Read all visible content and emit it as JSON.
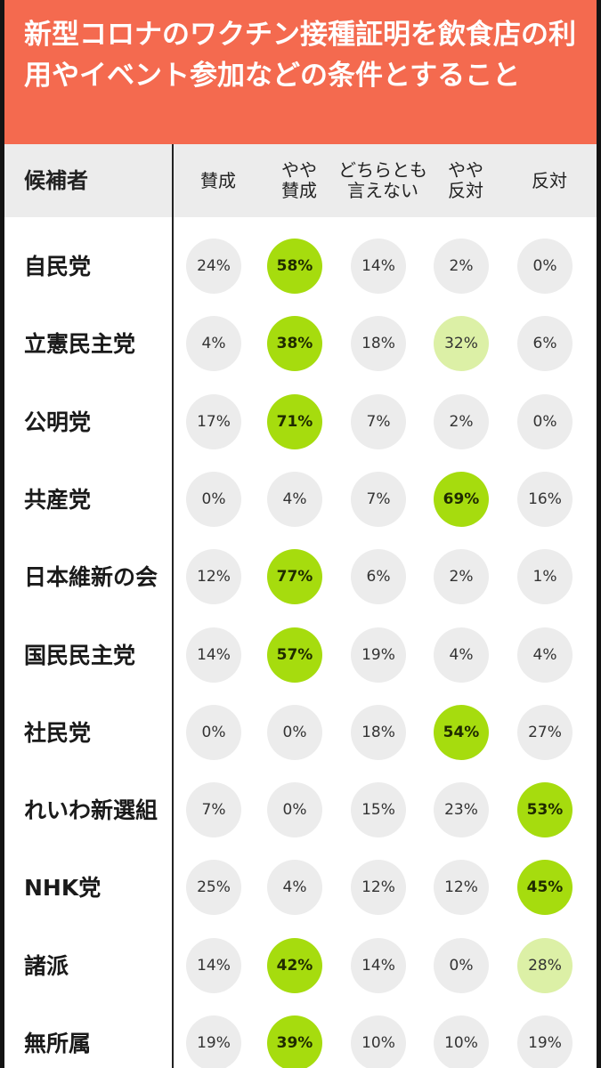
{
  "title": "新型コロナのワクチン接種証明を飲食店の利用やイベント参加などの条件とすること",
  "colors": {
    "title_bg": "#f46a4f",
    "header_bg": "#ececec",
    "cell_default": "#ececec",
    "cell_highlight": "#a6dc0e",
    "cell_second": "#dcf0a6"
  },
  "header": {
    "first_col": "候補者",
    "columns": [
      "賛成",
      "やや\n賛成",
      "どちらとも\n言えない",
      "やや\n反対",
      "反対"
    ]
  },
  "rows": [
    {
      "party": "自民党",
      "values": [
        "24%",
        "58%",
        "14%",
        "2%",
        "0%"
      ],
      "levels": [
        "",
        "hi",
        "",
        "",
        ""
      ]
    },
    {
      "party": "立憲民主党",
      "values": [
        "4%",
        "38%",
        "18%",
        "32%",
        "6%"
      ],
      "levels": [
        "",
        "hi",
        "",
        "mid",
        ""
      ]
    },
    {
      "party": "公明党",
      "values": [
        "17%",
        "71%",
        "7%",
        "2%",
        "0%"
      ],
      "levels": [
        "",
        "hi",
        "",
        "",
        ""
      ]
    },
    {
      "party": "共産党",
      "values": [
        "0%",
        "4%",
        "7%",
        "69%",
        "16%"
      ],
      "levels": [
        "",
        "",
        "",
        "hi",
        ""
      ]
    },
    {
      "party": "日本維新の会",
      "values": [
        "12%",
        "77%",
        "6%",
        "2%",
        "1%"
      ],
      "levels": [
        "",
        "hi",
        "",
        "",
        ""
      ]
    },
    {
      "party": "国民民主党",
      "values": [
        "14%",
        "57%",
        "19%",
        "4%",
        "4%"
      ],
      "levels": [
        "",
        "hi",
        "",
        "",
        ""
      ]
    },
    {
      "party": "社民党",
      "values": [
        "0%",
        "0%",
        "18%",
        "54%",
        "27%"
      ],
      "levels": [
        "",
        "",
        "",
        "hi",
        ""
      ]
    },
    {
      "party": "れいわ新選組",
      "values": [
        "7%",
        "0%",
        "15%",
        "23%",
        "53%"
      ],
      "levels": [
        "",
        "",
        "",
        "",
        "hi"
      ]
    },
    {
      "party": "NHK党",
      "values": [
        "25%",
        "4%",
        "12%",
        "12%",
        "45%"
      ],
      "levels": [
        "",
        "",
        "",
        "",
        "hi"
      ]
    },
    {
      "party": "諸派",
      "values": [
        "14%",
        "42%",
        "14%",
        "0%",
        "28%"
      ],
      "levels": [
        "",
        "hi",
        "",
        "",
        "mid"
      ]
    },
    {
      "party": "無所属",
      "values": [
        "19%",
        "39%",
        "10%",
        "10%",
        "19%"
      ],
      "levels": [
        "",
        "hi",
        "",
        "",
        ""
      ]
    }
  ],
  "chart_data": {
    "type": "table",
    "title": "新型コロナのワクチン接種証明を飲食店の利用やイベント参加などの条件とすること",
    "row_header": "候補者",
    "columns": [
      "賛成",
      "やや賛成",
      "どちらとも言えない",
      "やや反対",
      "反対"
    ],
    "categories": [
      "自民党",
      "立憲民主党",
      "公明党",
      "共産党",
      "日本維新の会",
      "国民民主党",
      "社民党",
      "れいわ新選組",
      "NHK党",
      "諸派",
      "無所属"
    ],
    "unit": "%",
    "values": [
      [
        24,
        58,
        14,
        2,
        0
      ],
      [
        4,
        38,
        18,
        32,
        6
      ],
      [
        17,
        71,
        7,
        2,
        0
      ],
      [
        0,
        4,
        7,
        69,
        16
      ],
      [
        12,
        77,
        6,
        2,
        1
      ],
      [
        14,
        57,
        19,
        4,
        4
      ],
      [
        0,
        0,
        18,
        54,
        27
      ],
      [
        7,
        0,
        15,
        23,
        53
      ],
      [
        25,
        4,
        12,
        12,
        45
      ],
      [
        14,
        42,
        14,
        0,
        28
      ],
      [
        19,
        39,
        10,
        10,
        19
      ]
    ]
  }
}
